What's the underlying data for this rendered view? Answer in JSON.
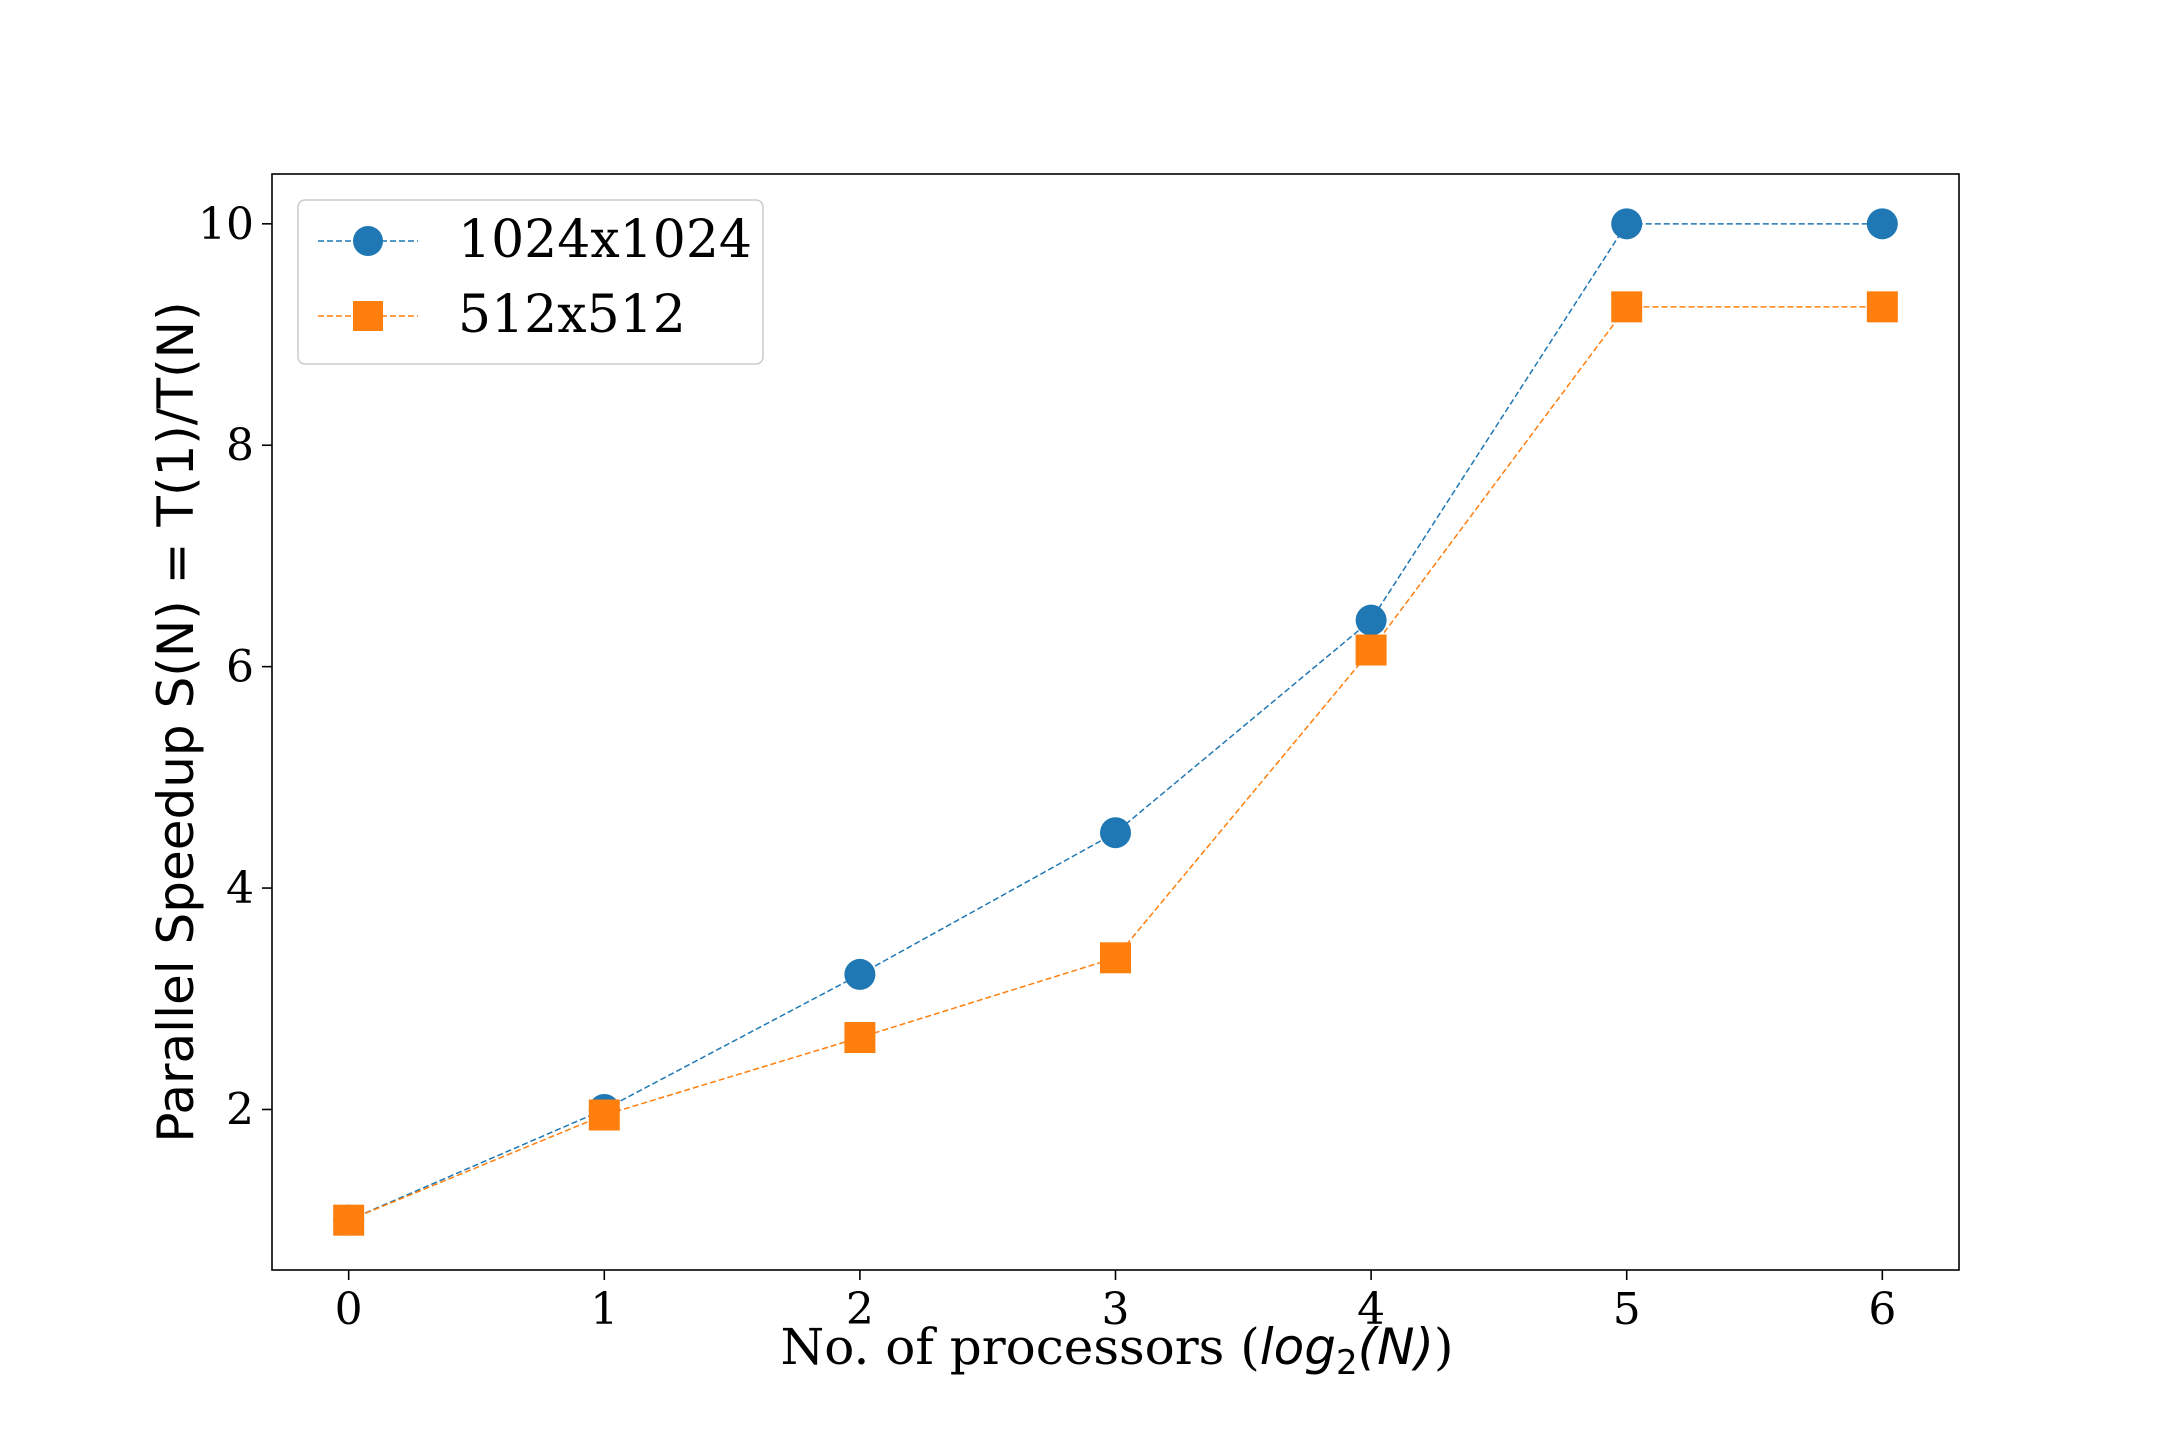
{
  "chart_data": {
    "type": "line",
    "title": "",
    "xlabel": "No. of processors (",
    "xlabel_math": {
      "base": "log",
      "subscript": "2",
      "argument": "(N)"
    },
    "xlabel_close": ")",
    "ylabel": "Parallel Speedup S(N) = T(1)/T(N)",
    "x": [
      0,
      1,
      2,
      3,
      4,
      5,
      6
    ],
    "xlim": [
      -0.3,
      6.3
    ],
    "ylim": [
      0.55,
      10.45
    ],
    "xticks": [
      0,
      1,
      2,
      3,
      4,
      5,
      6
    ],
    "yticks": [
      2,
      4,
      6,
      8,
      10
    ],
    "grid": false,
    "legend_position": "top-left",
    "series": [
      {
        "name": "1024x1024",
        "marker": "circle",
        "color": "#1f77b4",
        "linestyle": "dashed",
        "values": [
          1.0,
          2.0,
          3.22,
          4.5,
          6.42,
          10.0,
          10.0
        ]
      },
      {
        "name": "512x512",
        "marker": "square",
        "color": "#ff7f0e",
        "linestyle": "dashed",
        "values": [
          1.0,
          1.95,
          2.65,
          3.37,
          6.15,
          9.25,
          9.25
        ]
      }
    ]
  }
}
